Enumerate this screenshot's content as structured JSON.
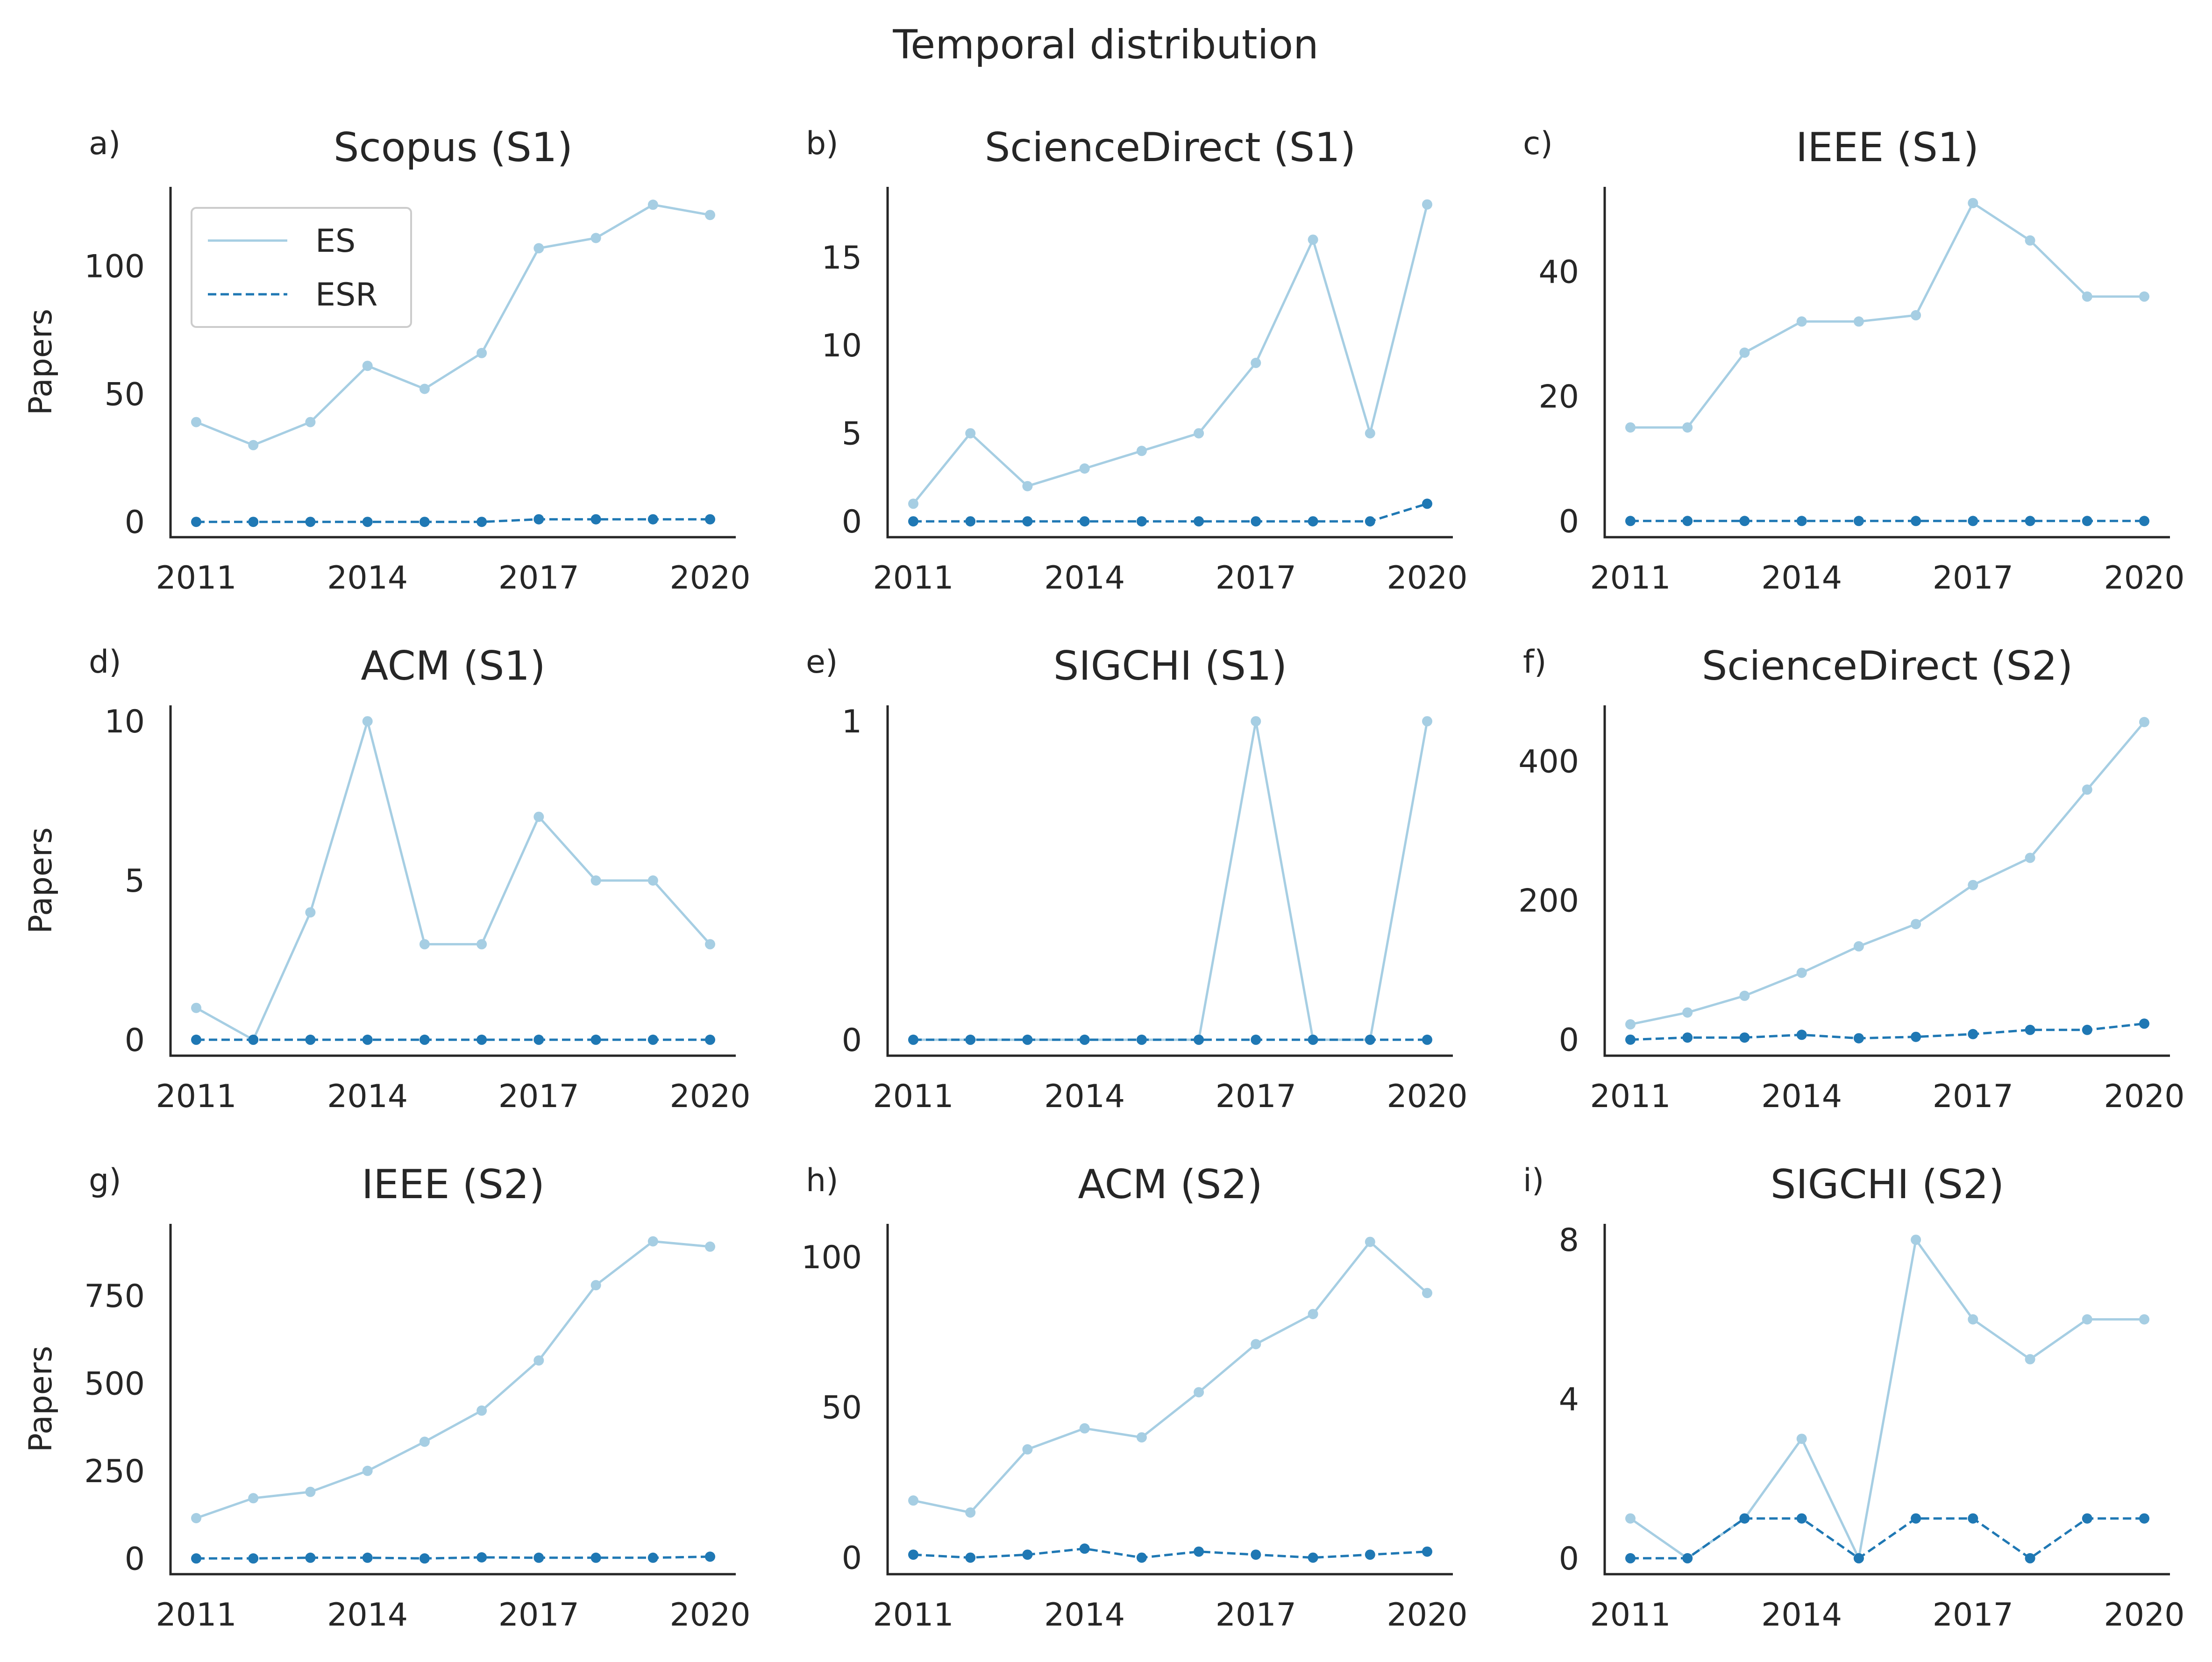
{
  "figure": {
    "title": "Temporal distribution",
    "ylabel": "Papers",
    "legend": [
      {
        "label": "ES",
        "color": "#a6cee3",
        "style": "solid"
      },
      {
        "label": "ESR",
        "color": "#1f78b4",
        "style": "dashed"
      }
    ],
    "colors": {
      "ES": "#a6cee3",
      "ESR": "#1f78b4",
      "axis": "#262626",
      "text": "#262626"
    }
  },
  "chart_data": [
    {
      "type": "line",
      "letter": "a)",
      "title": "Scopus (S1)",
      "ylabel": "Papers",
      "x": [
        2011,
        2012,
        2013,
        2014,
        2015,
        2016,
        2017,
        2018,
        2019,
        2020
      ],
      "xticks": [
        2011,
        2014,
        2017,
        2020
      ],
      "yticks": [
        0,
        50,
        100
      ],
      "ylim": [
        -6,
        131
      ],
      "legend": "upper-left",
      "series": [
        {
          "name": "ES",
          "values": [
            39,
            30,
            39,
            61,
            52,
            66,
            107,
            111,
            124,
            120
          ]
        },
        {
          "name": "ESR",
          "values": [
            0,
            0,
            0,
            0,
            0,
            0,
            1,
            1,
            1,
            1
          ]
        }
      ]
    },
    {
      "type": "line",
      "letter": "b)",
      "title": "ScienceDirect (S1)",
      "ylabel": "",
      "x": [
        2011,
        2012,
        2013,
        2014,
        2015,
        2016,
        2017,
        2018,
        2019,
        2020
      ],
      "xticks": [
        2011,
        2014,
        2017,
        2020
      ],
      "yticks": [
        0,
        5,
        10,
        15
      ],
      "ylim": [
        -0.9,
        19
      ],
      "series": [
        {
          "name": "ES",
          "values": [
            1,
            5,
            2,
            3,
            4,
            5,
            9,
            16,
            5,
            18
          ]
        },
        {
          "name": "ESR",
          "values": [
            0,
            0,
            0,
            0,
            0,
            0,
            0,
            0,
            0,
            1
          ]
        }
      ]
    },
    {
      "type": "line",
      "letter": "c)",
      "title": "IEEE (S1)",
      "ylabel": "",
      "x": [
        2011,
        2012,
        2013,
        2014,
        2015,
        2016,
        2017,
        2018,
        2019,
        2020
      ],
      "xticks": [
        2011,
        2014,
        2017,
        2020
      ],
      "yticks": [
        0,
        20,
        40
      ],
      "ylim": [
        -2.6,
        53.6
      ],
      "series": [
        {
          "name": "ES",
          "values": [
            15,
            15,
            27,
            32,
            32,
            33,
            51,
            45,
            36,
            36
          ]
        },
        {
          "name": "ESR",
          "values": [
            0,
            0,
            0,
            0,
            0,
            0,
            0,
            0,
            0,
            0
          ]
        }
      ]
    },
    {
      "type": "line",
      "letter": "d)",
      "title": "ACM (S1)",
      "ylabel": "Papers",
      "x": [
        2011,
        2012,
        2013,
        2014,
        2015,
        2016,
        2017,
        2018,
        2019,
        2020
      ],
      "xticks": [
        2011,
        2014,
        2017,
        2020
      ],
      "yticks": [
        0,
        5,
        10
      ],
      "ylim": [
        -0.5,
        10.5
      ],
      "series": [
        {
          "name": "ES",
          "values": [
            1,
            0,
            4,
            10,
            3,
            3,
            7,
            5,
            5,
            3
          ]
        },
        {
          "name": "ESR",
          "values": [
            0,
            0,
            0,
            0,
            0,
            0,
            0,
            0,
            0,
            0
          ]
        }
      ]
    },
    {
      "type": "line",
      "letter": "e)",
      "title": "SIGCHI (S1)",
      "ylabel": "",
      "x": [
        2011,
        2012,
        2013,
        2014,
        2015,
        2016,
        2017,
        2018,
        2019,
        2020
      ],
      "xticks": [
        2011,
        2014,
        2017,
        2020
      ],
      "yticks": [
        0,
        1
      ],
      "ylim": [
        -0.05,
        1.05
      ],
      "series": [
        {
          "name": "ES",
          "values": [
            0,
            0,
            0,
            0,
            0,
            0,
            1,
            0,
            0,
            1
          ]
        },
        {
          "name": "ESR",
          "values": [
            0,
            0,
            0,
            0,
            0,
            0,
            0,
            0,
            0,
            0
          ]
        }
      ]
    },
    {
      "type": "line",
      "letter": "f)",
      "title": "ScienceDirect (S2)",
      "ylabel": "",
      "x": [
        2011,
        2012,
        2013,
        2014,
        2015,
        2016,
        2017,
        2018,
        2019,
        2020
      ],
      "xticks": [
        2011,
        2014,
        2017,
        2020
      ],
      "yticks": [
        0,
        200,
        400
      ],
      "ylim": [
        -23,
        480
      ],
      "series": [
        {
          "name": "ES",
          "values": [
            22,
            39,
            63,
            96,
            134,
            166,
            222,
            261,
            359,
            456
          ]
        },
        {
          "name": "ESR",
          "values": [
            0,
            3,
            3,
            7,
            2,
            4,
            8,
            14,
            14,
            23
          ]
        }
      ]
    },
    {
      "type": "line",
      "letter": "g)",
      "title": "IEEE (S2)",
      "ylabel": "Papers",
      "x": [
        2011,
        2012,
        2013,
        2014,
        2015,
        2016,
        2017,
        2018,
        2019,
        2020
      ],
      "xticks": [
        2011,
        2014,
        2017,
        2020
      ],
      "yticks": [
        0,
        250,
        500,
        750
      ],
      "ylim": [
        -45,
        955
      ],
      "series": [
        {
          "name": "ES",
          "values": [
            115,
            172,
            190,
            250,
            333,
            422,
            565,
            780,
            905,
            890
          ]
        },
        {
          "name": "ESR",
          "values": [
            0,
            0,
            2,
            2,
            0,
            3,
            2,
            2,
            2,
            5
          ]
        }
      ]
    },
    {
      "type": "line",
      "letter": "h)",
      "title": "ACM (S2)",
      "ylabel": "",
      "x": [
        2011,
        2012,
        2013,
        2014,
        2015,
        2016,
        2017,
        2018,
        2019,
        2020
      ],
      "xticks": [
        2011,
        2014,
        2017,
        2020
      ],
      "yticks": [
        0,
        50,
        100
      ],
      "ylim": [
        -5.5,
        111
      ],
      "series": [
        {
          "name": "ES",
          "values": [
            19,
            15,
            36,
            43,
            40,
            55,
            71,
            81,
            105,
            88
          ]
        },
        {
          "name": "ESR",
          "values": [
            1,
            0,
            1,
            3,
            0,
            2,
            1,
            0,
            1,
            2
          ]
        }
      ]
    },
    {
      "type": "line",
      "letter": "i)",
      "title": "SIGCHI (S2)",
      "ylabel": "",
      "x": [
        2011,
        2012,
        2013,
        2014,
        2015,
        2016,
        2017,
        2018,
        2019,
        2020
      ],
      "xticks": [
        2011,
        2014,
        2017,
        2020
      ],
      "yticks": [
        0,
        4,
        8
      ],
      "ylim": [
        -0.4,
        8.4
      ],
      "series": [
        {
          "name": "ES",
          "values": [
            1,
            0,
            1,
            3,
            0,
            8,
            6,
            5,
            6,
            6
          ]
        },
        {
          "name": "ESR",
          "values": [
            0,
            0,
            1,
            1,
            0,
            1,
            1,
            0,
            1,
            1
          ]
        }
      ]
    }
  ]
}
